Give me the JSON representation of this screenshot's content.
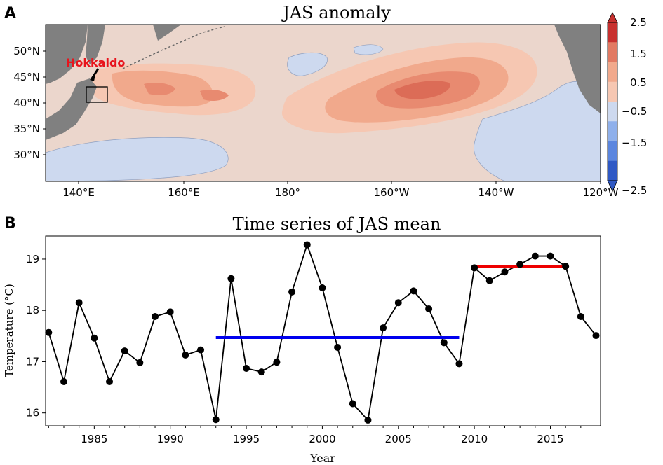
{
  "colors": {
    "land": "#808080",
    "warm_1": "#f6c7b2",
    "warm_2": "#f1a98c",
    "warm_3": "#e88a70",
    "warm_4": "#dc6c57",
    "base": "#ebd6cc",
    "cool_1": "#cdd9ef",
    "hokkaido_label": "#e8141c",
    "line_series": "#000000",
    "mean_blue": "#0000ee",
    "mean_red": "#ee0000"
  },
  "panel_a": {
    "letter": "A",
    "title": "JAS anomaly",
    "region_label": "Hokkaido",
    "lat_ticks": [
      "50°N",
      "45°N",
      "40°N",
      "35°N",
      "30°N"
    ],
    "lon_ticks": [
      "140°E",
      "160°E",
      "180°",
      "160°W",
      "140°W",
      "120°W"
    ],
    "colorbar": {
      "colors": [
        "#2f59c5",
        "#5b86df",
        "#8fb0eb",
        "#cdd9ef",
        "#f6c7b2",
        "#f1a98c",
        "#e27a63",
        "#c8312f"
      ],
      "ticks": [
        "2.5",
        "1.5",
        "0.5",
        "−0.5",
        "−1.5",
        "−2.5"
      ]
    }
  },
  "panel_b": {
    "letter": "B",
    "chart_data": {
      "type": "line",
      "title": "Time series of JAS mean",
      "xlabel": "Year",
      "ylabel": "Temperature (°C)",
      "xlim": [
        1981.8,
        2018.3
      ],
      "ylim": [
        15.75,
        19.45
      ],
      "x_ticks": [
        1985,
        1990,
        1995,
        2000,
        2005,
        2010,
        2015
      ],
      "y_ticks": [
        16,
        17,
        18,
        19
      ],
      "grid": false,
      "series": [
        {
          "x": [
            1982,
            1983,
            1984,
            1985,
            1986,
            1987,
            1988,
            1989,
            1990,
            1991,
            1992,
            1993,
            1994,
            1995,
            1996,
            1997,
            1998,
            1999,
            2000,
            2001,
            2002,
            2003,
            2004,
            2005,
            2006,
            2007,
            2008,
            2009,
            2010,
            2011,
            2012,
            2013,
            2014,
            2015,
            2016,
            2017,
            2018
          ],
          "y": [
            17.57,
            16.61,
            18.15,
            17.46,
            16.61,
            17.21,
            16.98,
            17.88,
            17.97,
            17.13,
            17.23,
            15.87,
            18.62,
            16.87,
            16.8,
            16.99,
            18.36,
            19.28,
            18.44,
            17.28,
            16.18,
            15.86,
            17.66,
            18.15,
            18.38,
            18.03,
            17.37,
            16.96,
            18.83,
            18.58,
            18.75,
            18.9,
            19.06,
            19.06,
            18.86,
            17.88,
            17.51
          ]
        }
      ],
      "mean_lines": [
        {
          "color": "blue",
          "x": [
            1993,
            2009
          ],
          "y": 17.47
        },
        {
          "color": "red",
          "x": [
            2010,
            2016
          ],
          "y": 18.86
        }
      ]
    }
  }
}
